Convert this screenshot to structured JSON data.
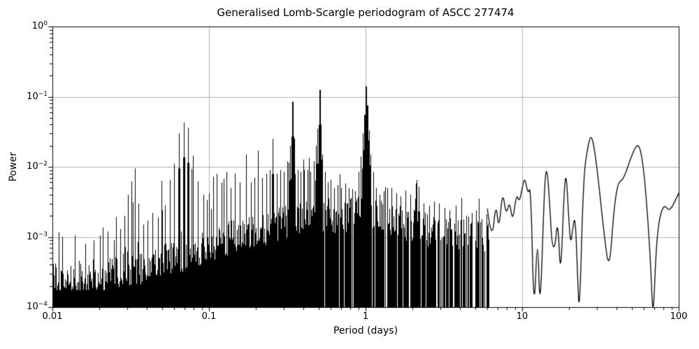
{
  "chart_data": {
    "type": "line",
    "title": "Generalised Lomb-Scargle periodogram of ASCC 277474",
    "xlabel": "Period (days)",
    "ylabel": "Power",
    "xscale": "log",
    "yscale": "log",
    "xlim": [
      0.01,
      100
    ],
    "ylim": [
      0.0001,
      1
    ],
    "grid": true,
    "line_color": "#000000",
    "grid_color": "#b0b0b0",
    "background": "#ffffff",
    "xticks": [
      {
        "label": "0.01",
        "value": 0.01
      },
      {
        "label": "0.1",
        "value": 0.1
      },
      {
        "label": "1",
        "value": 1
      },
      {
        "label": "10",
        "value": 10
      },
      {
        "label": "100",
        "value": 100
      }
    ],
    "yticks": [
      {
        "base": "10",
        "exp": "0",
        "value": 1
      },
      {
        "base": "10",
        "exp": "−1",
        "value": 0.1
      },
      {
        "base": "10",
        "exp": "−2",
        "value": 0.01
      },
      {
        "base": "10",
        "exp": "−3",
        "value": 0.001
      },
      {
        "base": "10",
        "exp": "−4",
        "value": 0.0001
      }
    ],
    "peaks": [
      [
        0.0115,
        0.001
      ],
      [
        0.0139,
        0.00105
      ],
      [
        0.0162,
        0.0008
      ],
      [
        0.0183,
        0.0009
      ],
      [
        0.0202,
        0.00105
      ],
      [
        0.0225,
        0.0012
      ],
      [
        0.0248,
        0.0009
      ],
      [
        0.027,
        0.0013
      ],
      [
        0.0288,
        0.002
      ],
      [
        0.0305,
        0.004
      ],
      [
        0.032,
        0.0062
      ],
      [
        0.0337,
        0.0095
      ],
      [
        0.0355,
        0.003
      ],
      [
        0.038,
        0.0015
      ],
      [
        0.0406,
        0.0017
      ],
      [
        0.0435,
        0.0022
      ],
      [
        0.047,
        0.0019
      ],
      [
        0.05,
        0.0024
      ],
      [
        0.0525,
        0.0028
      ],
      [
        0.056,
        0.0065
      ],
      [
        0.0597,
        0.011
      ],
      [
        0.0645,
        0.03
      ],
      [
        0.0689,
        0.043
      ],
      [
        0.0733,
        0.036
      ],
      [
        0.0787,
        0.0145
      ],
      [
        0.085,
        0.0062
      ],
      [
        0.092,
        0.004
      ],
      [
        0.1,
        0.0042
      ],
      [
        0.106,
        0.005
      ],
      [
        0.112,
        0.008
      ],
      [
        0.12,
        0.006
      ],
      [
        0.129,
        0.0085
      ],
      [
        0.138,
        0.005
      ],
      [
        0.147,
        0.008
      ],
      [
        0.157,
        0.006
      ],
      [
        0.172,
        0.015
      ],
      [
        0.185,
        0.006
      ],
      [
        0.196,
        0.007
      ],
      [
        0.206,
        0.017
      ],
      [
        0.218,
        0.007
      ],
      [
        0.232,
        0.008
      ],
      [
        0.245,
        0.009
      ],
      [
        0.256,
        0.025
      ],
      [
        0.27,
        0.008
      ],
      [
        0.285,
        0.009
      ],
      [
        0.3,
        0.0085
      ],
      [
        0.315,
        0.012
      ],
      [
        0.328,
        0.02
      ],
      [
        0.339,
        0.085
      ],
      [
        0.352,
        0.025
      ],
      [
        0.368,
        0.009
      ],
      [
        0.385,
        0.0085
      ],
      [
        0.405,
        0.009
      ],
      [
        0.425,
        0.009
      ],
      [
        0.445,
        0.0085
      ],
      [
        0.465,
        0.012
      ],
      [
        0.482,
        0.02
      ],
      [
        0.494,
        0.035
      ],
      [
        0.506,
        0.125
      ],
      [
        0.518,
        0.04
      ],
      [
        0.53,
        0.015
      ],
      [
        0.55,
        0.0085
      ],
      [
        0.575,
        0.006
      ],
      [
        0.6,
        0.0065
      ],
      [
        0.63,
        0.005
      ],
      [
        0.66,
        0.0055
      ],
      [
        0.7,
        0.005
      ],
      [
        0.74,
        0.0058
      ],
      [
        0.78,
        0.005
      ],
      [
        0.82,
        0.0048
      ],
      [
        0.86,
        0.0045
      ],
      [
        0.9,
        0.0085
      ],
      [
        0.93,
        0.014
      ],
      [
        0.955,
        0.03
      ],
      [
        0.975,
        0.055
      ],
      [
        1.0,
        0.14
      ],
      [
        1.025,
        0.075
      ],
      [
        1.05,
        0.033
      ],
      [
        1.08,
        0.015
      ],
      [
        1.12,
        0.0085
      ],
      [
        1.17,
        0.005
      ],
      [
        1.23,
        0.004
      ],
      [
        1.3,
        0.0045
      ],
      [
        1.38,
        0.005
      ],
      [
        1.47,
        0.005
      ],
      [
        1.57,
        0.0042
      ],
      [
        1.68,
        0.0038
      ],
      [
        1.8,
        0.0046
      ],
      [
        1.93,
        0.004
      ],
      [
        2.07,
        0.0035
      ],
      [
        2.19,
        0.0052
      ],
      [
        2.35,
        0.003
      ],
      [
        2.55,
        0.0028
      ],
      [
        2.75,
        0.0032
      ],
      [
        2.95,
        0.003
      ],
      [
        3.2,
        0.0026
      ],
      [
        3.45,
        0.0024
      ],
      [
        3.75,
        0.0028
      ],
      [
        4.1,
        0.0036
      ],
      [
        4.4,
        0.002
      ],
      [
        4.75,
        0.0022
      ],
      [
        5.1,
        0.0024
      ],
      [
        5.5,
        0.0018
      ],
      [
        5.9,
        0.0021
      ]
    ],
    "noise_envelope": [
      [
        0.01,
        0.00028
      ],
      [
        0.014,
        0.0003
      ],
      [
        0.02,
        0.00032
      ],
      [
        0.03,
        0.0004
      ],
      [
        0.045,
        0.00045
      ],
      [
        0.06,
        0.0006
      ],
      [
        0.08,
        0.0007
      ],
      [
        0.1,
        0.0009
      ],
      [
        0.13,
        0.0011
      ],
      [
        0.17,
        0.0013
      ],
      [
        0.22,
        0.0015
      ],
      [
        0.3,
        0.0018
      ],
      [
        0.4,
        0.0022
      ],
      [
        0.5,
        0.0025
      ],
      [
        0.7,
        0.0022
      ],
      [
        1.0,
        0.0028
      ],
      [
        1.4,
        0.0022
      ],
      [
        2.0,
        0.0016
      ],
      [
        3.0,
        0.0014
      ],
      [
        4.5,
        0.0013
      ],
      [
        6.2,
        0.0012
      ]
    ],
    "smooth_tail": [
      [
        6.0,
        0.0025
      ],
      [
        6.4,
        0.0008
      ],
      [
        6.8,
        0.0032
      ],
      [
        7.1,
        0.0012
      ],
      [
        7.5,
        0.0047
      ],
      [
        7.9,
        0.002
      ],
      [
        8.3,
        0.0033
      ],
      [
        8.7,
        0.0016
      ],
      [
        9.2,
        0.0042
      ],
      [
        9.6,
        0.0031
      ],
      [
        10.0,
        0.005
      ],
      [
        10.4,
        0.0072
      ],
      [
        10.9,
        0.004
      ],
      [
        11.35,
        0.0055
      ],
      [
        11.9,
        6e-05
      ],
      [
        12.55,
        0.0015
      ],
      [
        13.0,
        6e-05
      ],
      [
        13.9,
        0.0062
      ],
      [
        14.4,
        0.0102
      ],
      [
        15.0,
        0.003
      ],
      [
        15.5,
        0.00075
      ],
      [
        16.2,
        0.0007
      ],
      [
        16.9,
        0.0019
      ],
      [
        17.6,
        0.00023
      ],
      [
        18.5,
        0.0042
      ],
      [
        19.1,
        0.0088
      ],
      [
        19.8,
        0.002
      ],
      [
        20.4,
        0.00075
      ],
      [
        21.1,
        0.0014
      ],
      [
        21.8,
        0.002
      ],
      [
        22.5,
        0.0004
      ],
      [
        23.2,
        6e-05
      ],
      [
        24.6,
        0.007
      ],
      [
        26.2,
        0.019
      ],
      [
        27.5,
        0.029
      ],
      [
        28.9,
        0.019
      ],
      [
        30.8,
        0.006
      ],
      [
        33.2,
        0.0012
      ],
      [
        36.0,
        0.0003
      ],
      [
        38.6,
        0.0026
      ],
      [
        41.0,
        0.006
      ],
      [
        43.6,
        0.0064
      ],
      [
        46.3,
        0.0086
      ],
      [
        49.2,
        0.013
      ],
      [
        52.2,
        0.018
      ],
      [
        55.0,
        0.021
      ],
      [
        57.6,
        0.016
      ],
      [
        60.5,
        0.007
      ],
      [
        63.5,
        0.0018
      ],
      [
        66.2,
        0.0004
      ],
      [
        68.6,
        6e-05
      ],
      [
        71.5,
        0.0006
      ],
      [
        74.5,
        0.0016
      ],
      [
        78.2,
        0.0025
      ],
      [
        82.0,
        0.0028
      ],
      [
        86.0,
        0.0024
      ],
      [
        90.0,
        0.0026
      ],
      [
        95.0,
        0.0033
      ],
      [
        100.0,
        0.0042
      ]
    ]
  }
}
